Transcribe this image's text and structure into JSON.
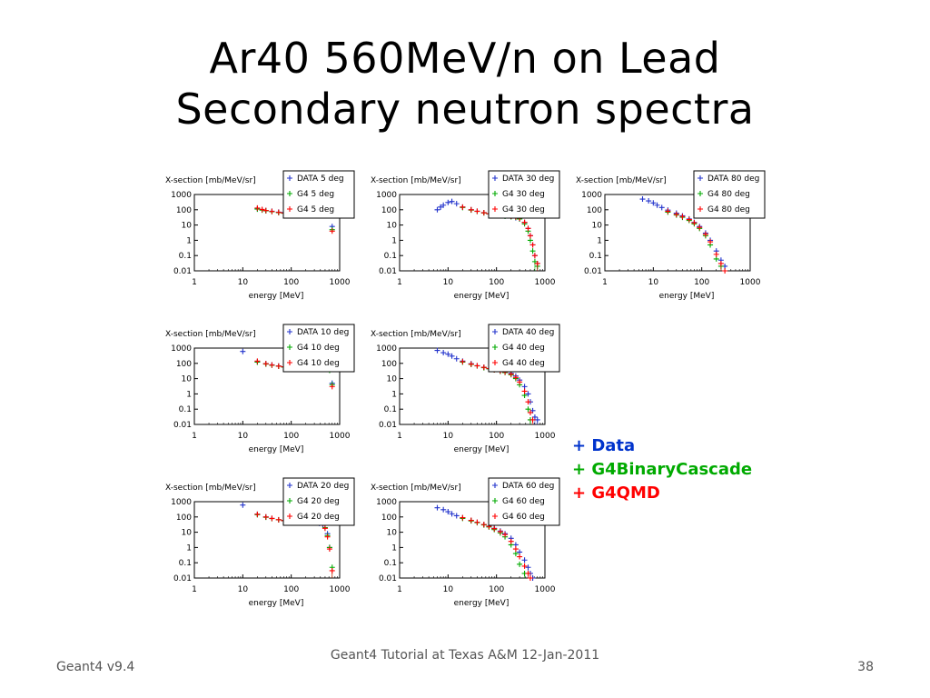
{
  "slide": {
    "title_line1": "Ar40 560MeV/n on Lead",
    "title_line2": "Secondary neutron spectra",
    "legend": [
      {
        "label": "+ Data",
        "color": "#0033cc"
      },
      {
        "label": "+ G4BinaryCascade",
        "color": "#00aa00"
      },
      {
        "label": "+ G4QMD",
        "color": "#ff0000"
      }
    ],
    "footer_left": "Geant4 v9.4",
    "footer_center": "Geant4 Tutorial at Texas A&M 12-Jan-2011",
    "footer_right": "38"
  },
  "chart_data": [
    {
      "type": "scatter",
      "angle": "5 deg",
      "ylabel": "X-section [mb/MeV/sr]",
      "xlabel": "energy [MeV]",
      "xscale": "log",
      "yscale": "log",
      "xlim": [
        1,
        1000
      ],
      "ylim": [
        0.01,
        1000
      ],
      "xticks": [
        "1",
        "10",
        "100",
        "1000"
      ],
      "yticks": [
        "1000",
        "100",
        "10",
        "1",
        "0.1",
        "0.01"
      ],
      "legend_entries": [
        "DATA 5 deg",
        "G4   5 deg",
        "G4   5 deg"
      ],
      "series": [
        {
          "color": "#2233cc",
          "x": [
            20,
            25,
            30,
            40,
            55,
            70,
            90,
            120,
            150,
            200,
            250,
            300,
            380,
            450,
            500,
            560,
            620,
            700
          ],
          "y": [
            120,
            100,
            90,
            80,
            70,
            65,
            60,
            60,
            55,
            55,
            60,
            70,
            100,
            170,
            180,
            130,
            60,
            8
          ]
        },
        {
          "color": "#00aa00",
          "x": [
            20,
            25,
            30,
            40,
            55,
            70,
            90,
            120,
            150,
            200,
            250,
            300,
            380,
            450,
            500,
            560,
            620,
            700
          ],
          "y": [
            110,
            95,
            85,
            75,
            65,
            60,
            58,
            55,
            52,
            50,
            55,
            70,
            110,
            200,
            210,
            140,
            50,
            5
          ]
        },
        {
          "color": "#ff0000",
          "x": [
            20,
            25,
            30,
            40,
            55,
            70,
            90,
            120,
            150,
            200,
            250,
            300,
            380,
            450,
            500,
            560,
            620,
            700
          ],
          "y": [
            130,
            105,
            90,
            78,
            68,
            62,
            58,
            55,
            55,
            56,
            62,
            80,
            130,
            260,
            300,
            200,
            60,
            4
          ]
        }
      ]
    },
    {
      "type": "scatter",
      "angle": "10 deg",
      "ylabel": "X-section [mb/MeV/sr]",
      "xlabel": "energy [MeV]",
      "xscale": "log",
      "yscale": "log",
      "xlim": [
        1,
        1000
      ],
      "ylim": [
        0.01,
        1000
      ],
      "xticks": [
        "1",
        "10",
        "100",
        "1000"
      ],
      "yticks": [
        "1000",
        "100",
        "10",
        "1",
        "0.1",
        "0.01"
      ],
      "legend_entries": [
        "DATA 10 deg",
        "G4  10 deg",
        "G4  10 deg"
      ],
      "series": [
        {
          "color": "#2233cc",
          "x": [
            10,
            20,
            30,
            40,
            55,
            70,
            90,
            120,
            150,
            200,
            250,
            300,
            380,
            450,
            500,
            560,
            620,
            700
          ],
          "y": [
            600,
            130,
            95,
            80,
            68,
            60,
            55,
            52,
            50,
            48,
            50,
            55,
            80,
            150,
            160,
            100,
            40,
            5
          ]
        },
        {
          "color": "#00aa00",
          "x": [
            20,
            30,
            40,
            55,
            70,
            90,
            120,
            150,
            200,
            250,
            300,
            380,
            450,
            500,
            560,
            620,
            700
          ],
          "y": [
            120,
            90,
            75,
            65,
            58,
            52,
            50,
            48,
            46,
            50,
            60,
            90,
            180,
            190,
            110,
            35,
            4
          ]
        },
        {
          "color": "#ff0000",
          "x": [
            20,
            30,
            40,
            55,
            70,
            90,
            120,
            150,
            200,
            250,
            300,
            380,
            450,
            500,
            560,
            620,
            700
          ],
          "y": [
            140,
            95,
            78,
            66,
            60,
            55,
            52,
            50,
            50,
            55,
            68,
            110,
            220,
            240,
            140,
            40,
            3
          ]
        }
      ]
    },
    {
      "type": "scatter",
      "angle": "20 deg",
      "ylabel": "X-section [mb/MeV/sr]",
      "xlabel": "energy [MeV]",
      "xscale": "log",
      "yscale": "log",
      "xlim": [
        1,
        1000
      ],
      "ylim": [
        0.01,
        1000
      ],
      "xticks": [
        "1",
        "10",
        "100",
        "1000"
      ],
      "yticks": [
        "1000",
        "100",
        "10",
        "1",
        "0.1",
        "0.01"
      ],
      "legend_entries": [
        "DATA 20 deg",
        "G4  20 deg",
        "G4  20 deg"
      ],
      "series": [
        {
          "color": "#2233cc",
          "x": [
            10,
            20,
            30,
            40,
            55,
            70,
            90,
            120,
            150,
            200,
            250,
            300,
            380,
            450,
            500,
            560,
            620
          ],
          "y": [
            600,
            150,
            100,
            80,
            65,
            58,
            52,
            48,
            45,
            42,
            40,
            40,
            38,
            30,
            20,
            8,
            1
          ]
        },
        {
          "color": "#00aa00",
          "x": [
            20,
            30,
            40,
            55,
            70,
            90,
            120,
            150,
            200,
            250,
            300,
            380,
            450,
            500,
            560,
            620,
            700
          ],
          "y": [
            140,
            95,
            78,
            65,
            58,
            52,
            48,
            45,
            44,
            46,
            50,
            55,
            40,
            20,
            6,
            1,
            0.05
          ]
        },
        {
          "color": "#ff0000",
          "x": [
            20,
            30,
            40,
            55,
            70,
            90,
            120,
            150,
            200,
            250,
            300,
            380,
            450,
            500,
            560,
            620,
            700
          ],
          "y": [
            150,
            100,
            80,
            66,
            58,
            52,
            48,
            45,
            43,
            45,
            48,
            50,
            38,
            18,
            5,
            0.8,
            0.03
          ]
        }
      ]
    },
    {
      "type": "scatter",
      "angle": "30 deg",
      "ylabel": "X-section [mb/MeV/sr]",
      "xlabel": "energy [MeV]",
      "xscale": "log",
      "yscale": "log",
      "xlim": [
        1,
        1000
      ],
      "ylim": [
        0.01,
        1000
      ],
      "xticks": [
        "1",
        "10",
        "100",
        "1000"
      ],
      "yticks": [
        "1000",
        "100",
        "10",
        "1",
        "0.1",
        "0.01"
      ],
      "legend_entries": [
        "DATA 30 deg",
        "G4  30 deg",
        "G4  30 deg"
      ],
      "series": [
        {
          "color": "#2233cc",
          "x": [
            6,
            7,
            8,
            10,
            12,
            15,
            20,
            30,
            40,
            55,
            70,
            90,
            120,
            150,
            200,
            250,
            300,
            380,
            450,
            500,
            560,
            620,
            700
          ],
          "y": [
            100,
            150,
            200,
            300,
            350,
            250,
            150,
            100,
            80,
            65,
            55,
            48,
            42,
            38,
            35,
            30,
            25,
            15,
            6,
            2,
            0.5,
            0.1,
            0.03
          ]
        },
        {
          "color": "#00aa00",
          "x": [
            20,
            30,
            40,
            55,
            70,
            90,
            120,
            150,
            200,
            250,
            300,
            380,
            450,
            500,
            560,
            620,
            700
          ],
          "y": [
            140,
            95,
            78,
            62,
            55,
            48,
            42,
            38,
            35,
            32,
            25,
            12,
            4,
            1,
            0.2,
            0.04,
            0.02
          ]
        },
        {
          "color": "#ff0000",
          "x": [
            20,
            30,
            40,
            55,
            70,
            90,
            120,
            150,
            200,
            250,
            300,
            380,
            450,
            500,
            560,
            620,
            700
          ],
          "y": [
            150,
            100,
            80,
            64,
            56,
            50,
            44,
            40,
            37,
            34,
            28,
            15,
            6,
            2,
            0.5,
            0.1,
            0.03
          ]
        }
      ]
    },
    {
      "type": "scatter",
      "angle": "40 deg",
      "ylabel": "X-section [mb/MeV/sr]",
      "xlabel": "energy [MeV]",
      "xscale": "log",
      "yscale": "log",
      "xlim": [
        1,
        1000
      ],
      "ylim": [
        0.01,
        1000
      ],
      "xticks": [
        "1",
        "10",
        "100",
        "1000"
      ],
      "yticks": [
        "1000",
        "100",
        "10",
        "1",
        "0.1",
        "0.01"
      ],
      "legend_entries": [
        "DATA 40 deg",
        "G4  40 deg",
        "G4  40 deg"
      ],
      "series": [
        {
          "color": "#2233cc",
          "x": [
            6,
            8,
            10,
            12,
            15,
            20,
            30,
            40,
            55,
            70,
            90,
            120,
            150,
            200,
            250,
            300,
            380,
            450,
            500,
            560,
            620,
            700
          ],
          "y": [
            700,
            500,
            400,
            300,
            200,
            140,
            95,
            70,
            55,
            45,
            38,
            32,
            28,
            22,
            15,
            8,
            3,
            1,
            0.3,
            0.08,
            0.03,
            0.02
          ]
        },
        {
          "color": "#00aa00",
          "x": [
            20,
            30,
            40,
            55,
            70,
            90,
            120,
            150,
            200,
            250,
            300,
            380,
            450,
            500
          ],
          "y": [
            120,
            85,
            68,
            52,
            44,
            37,
            30,
            25,
            18,
            10,
            4,
            0.8,
            0.1,
            0.02
          ]
        },
        {
          "color": "#ff0000",
          "x": [
            20,
            30,
            40,
            55,
            70,
            90,
            120,
            150,
            200,
            250,
            300,
            380,
            450,
            500,
            560
          ],
          "y": [
            130,
            90,
            70,
            55,
            46,
            38,
            32,
            27,
            20,
            12,
            6,
            1.5,
            0.3,
            0.06,
            0.02
          ]
        }
      ]
    },
    {
      "type": "scatter",
      "angle": "60 deg",
      "ylabel": "X-section [mb/MeV/sr]",
      "xlabel": "energy [MeV]",
      "xscale": "log",
      "yscale": "log",
      "xlim": [
        1,
        1000
      ],
      "ylim": [
        0.01,
        1000
      ],
      "xticks": [
        "1",
        "10",
        "100",
        "1000"
      ],
      "yticks": [
        "1000",
        "100",
        "10",
        "1",
        "0.1",
        "0.01"
      ],
      "legend_entries": [
        "DATA 60 deg",
        "G4  60 deg",
        "G4  60 deg"
      ],
      "series": [
        {
          "color": "#2233cc",
          "x": [
            6,
            8,
            10,
            12,
            15,
            20,
            30,
            40,
            55,
            70,
            90,
            120,
            150,
            200,
            250,
            300,
            380,
            450,
            500,
            560
          ],
          "y": [
            400,
            300,
            220,
            160,
            120,
            90,
            60,
            45,
            32,
            25,
            18,
            12,
            8,
            4,
            1.5,
            0.5,
            0.15,
            0.05,
            0.02,
            0.01
          ]
        },
        {
          "color": "#00aa00",
          "x": [
            20,
            30,
            40,
            55,
            70,
            90,
            120,
            150,
            200,
            250,
            300,
            380
          ],
          "y": [
            80,
            55,
            42,
            30,
            22,
            15,
            9,
            5,
            1.5,
            0.4,
            0.08,
            0.02
          ]
        },
        {
          "color": "#ff0000",
          "x": [
            20,
            30,
            40,
            55,
            70,
            90,
            120,
            150,
            200,
            250,
            300,
            380,
            450,
            500
          ],
          "y": [
            90,
            60,
            45,
            32,
            24,
            17,
            11,
            7,
            2.5,
            0.8,
            0.25,
            0.06,
            0.02,
            0.01
          ]
        }
      ]
    },
    {
      "type": "scatter",
      "angle": "80 deg",
      "ylabel": "X-section [mb/MeV/sr]",
      "xlabel": "energy [MeV]",
      "xscale": "log",
      "yscale": "log",
      "xlim": [
        1,
        1000
      ],
      "ylim": [
        0.01,
        1000
      ],
      "xticks": [
        "1",
        "10",
        "100",
        "1000"
      ],
      "yticks": [
        "1000",
        "100",
        "10",
        "1",
        "0.1",
        "0.01"
      ],
      "legend_entries": [
        "DATA 80 deg",
        "G4  80 deg",
        "G4  80 deg"
      ],
      "series": [
        {
          "color": "#2233cc",
          "x": [
            6,
            8,
            10,
            12,
            15,
            20,
            30,
            40,
            55,
            70,
            90,
            120,
            150,
            200,
            250,
            300
          ],
          "y": [
            500,
            380,
            280,
            200,
            140,
            95,
            60,
            40,
            25,
            15,
            8,
            3,
            1,
            0.2,
            0.05,
            0.02
          ]
        },
        {
          "color": "#00aa00",
          "x": [
            20,
            30,
            40,
            55,
            70,
            90,
            120,
            150,
            200,
            250
          ],
          "y": [
            70,
            45,
            32,
            20,
            12,
            6,
            2,
            0.5,
            0.06,
            0.02
          ]
        },
        {
          "color": "#ff0000",
          "x": [
            20,
            30,
            40,
            55,
            70,
            90,
            120,
            150,
            200,
            250,
            300
          ],
          "y": [
            80,
            50,
            36,
            23,
            14,
            7,
            2.5,
            0.8,
            0.12,
            0.03,
            0.01
          ]
        }
      ]
    }
  ]
}
